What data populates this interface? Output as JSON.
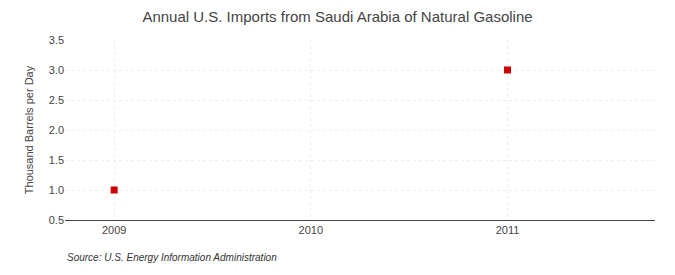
{
  "chart_data": {
    "type": "scatter",
    "title": "Annual U.S. Imports from Saudi Arabia of Natural Gasoline",
    "ylabel": "Thousand Barrels per Day",
    "annotations": [
      "Source: U.S. Energy Information Administration"
    ],
    "x": [
      2009,
      2011
    ],
    "values": [
      1.0,
      3.0
    ],
    "color": "#cc0000",
    "marker": "square",
    "xlim": [
      2008.75,
      2011.75
    ],
    "xticks": [
      2009,
      2010,
      2011
    ],
    "ylim": [
      0.5,
      3.5
    ],
    "yticks": [
      0.5,
      {
        "value": 1.0,
        "label": "1.0"
      },
      1.5,
      {
        "value": 2.0,
        "label": "2.0"
      },
      2.5,
      {
        "value": 3.0,
        "label": "3.0"
      },
      3.5
    ],
    "grid": true
  }
}
